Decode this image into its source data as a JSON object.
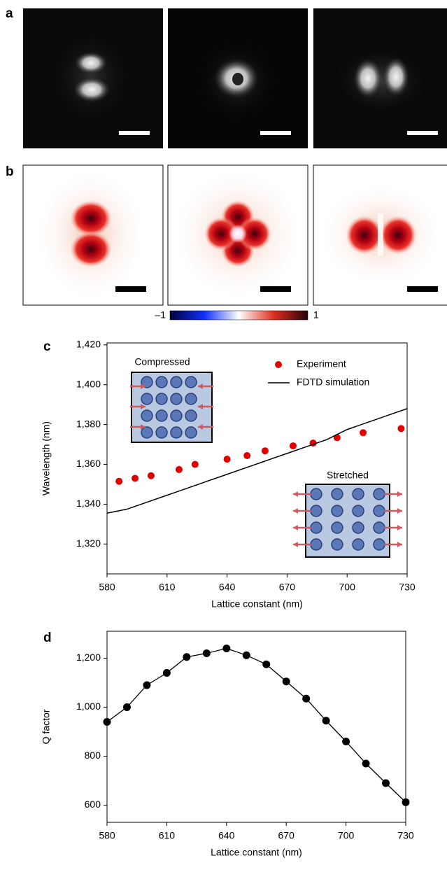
{
  "panels": {
    "a": "a",
    "b": "b",
    "c": "c",
    "d": "d"
  },
  "colorbar": {
    "ticks": [
      {
        "value": -1,
        "label": "–1"
      },
      1
    ]
  },
  "insets": {
    "compressed": "Compressed",
    "stretched": "Stretched"
  },
  "chart_data": [
    {
      "type": "scatter",
      "x_label": "Lattice constant (nm)",
      "y_label": "Wavelength (nm)",
      "xlim": [
        580,
        730
      ],
      "xticks": [
        580,
        610,
        640,
        670,
        700,
        730
      ],
      "ylim": [
        1305,
        1421
      ],
      "yticks": [
        {
          "value": 1320,
          "label": "1,320"
        },
        {
          "value": 1340,
          "label": "1,340"
        },
        {
          "value": 1360,
          "label": "1,360"
        },
        {
          "value": 1380,
          "label": "1,380"
        },
        {
          "value": 1400,
          "label": "1,400"
        },
        {
          "value": 1420,
          "label": "1,420"
        }
      ],
      "series": [
        {
          "name": "Experiment",
          "color": "#e00000",
          "mode": "markers",
          "x": [
            586,
            594,
            602,
            616,
            624,
            640,
            650,
            659,
            673,
            683,
            695,
            708,
            727
          ],
          "values": [
            1351.5,
            1353,
            1354.3,
            1357.4,
            1360,
            1362.6,
            1364.4,
            1366.8,
            1369.3,
            1370.7,
            1373.4,
            1375.9,
            1378
          ]
        },
        {
          "name": "FDTD simulation",
          "color": "#000000",
          "mode": "line",
          "x": [
            580,
            590,
            600,
            610,
            620,
            630,
            640,
            650,
            660,
            670,
            680,
            690,
            700,
            710,
            720,
            730
          ],
          "values": [
            1335.5,
            1337.5,
            1341,
            1344.5,
            1348,
            1351.5,
            1355,
            1358.5,
            1362,
            1365.5,
            1369,
            1372.5,
            1377.5,
            1381,
            1384.5,
            1388
          ]
        }
      ]
    },
    {
      "type": "line",
      "x_label": "Lattice constant (nm)",
      "y_label": "Q factor",
      "xlim": [
        580,
        730
      ],
      "xticks": [
        580,
        610,
        640,
        670,
        700,
        730
      ],
      "ylim": [
        530,
        1310
      ],
      "yticks": [
        600,
        800,
        {
          "value": 1000,
          "label": "1,000"
        },
        {
          "value": 1200,
          "label": "1,200"
        }
      ],
      "series": [
        {
          "color": "#000000",
          "markers": true,
          "x": [
            580,
            590,
            600,
            610,
            620,
            630,
            640,
            650,
            660,
            670,
            680,
            690,
            700,
            710,
            720,
            730
          ],
          "values": [
            940,
            1000,
            1090,
            1140,
            1205,
            1220,
            1240,
            1212,
            1175,
            1105,
            1035,
            945,
            860,
            770,
            690,
            612
          ]
        }
      ]
    }
  ]
}
